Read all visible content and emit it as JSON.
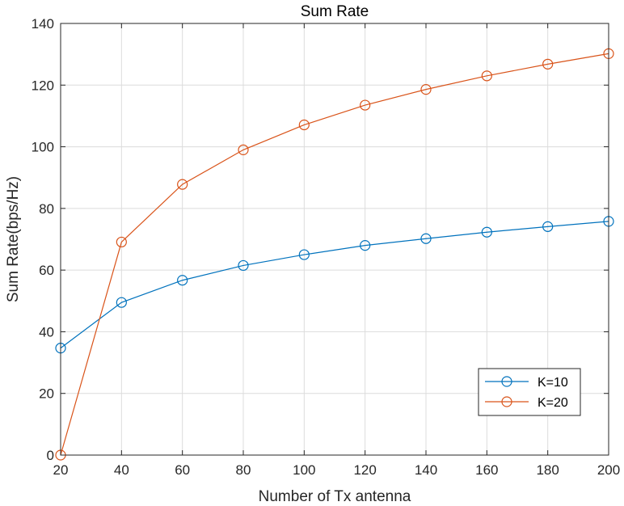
{
  "chart_data": {
    "type": "line",
    "title": "Sum Rate",
    "xlabel": "Number of Tx antenna",
    "ylabel": "Sum Rate(bps/Hz)",
    "x": [
      20,
      40,
      60,
      80,
      100,
      120,
      140,
      160,
      180,
      200
    ],
    "xlim": [
      20,
      200
    ],
    "ylim": [
      0,
      140
    ],
    "xticks": [
      20,
      40,
      60,
      80,
      100,
      120,
      140,
      160,
      180,
      200
    ],
    "yticks": [
      0,
      20,
      40,
      60,
      80,
      100,
      120,
      140
    ],
    "grid": true,
    "marker": "circle",
    "legend_position": "lower-right",
    "series": [
      {
        "name": "K=10",
        "color": "#0072BD",
        "values": [
          34.7,
          49.5,
          56.7,
          61.5,
          65.0,
          68.0,
          70.2,
          72.3,
          74.1,
          75.8
        ]
      },
      {
        "name": "K=20",
        "color": "#D95319",
        "values": [
          0.0,
          69.1,
          87.8,
          99.0,
          107.1,
          113.5,
          118.6,
          123.0,
          126.8,
          130.2
        ]
      }
    ]
  }
}
